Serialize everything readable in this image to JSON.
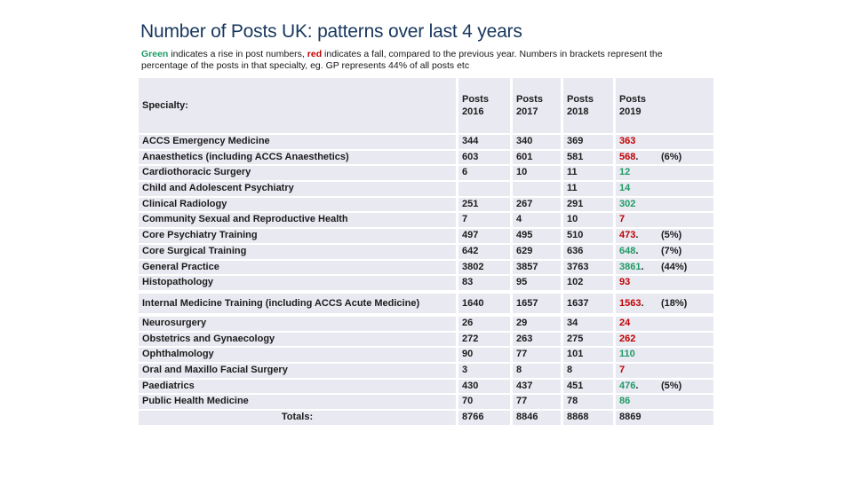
{
  "slide": {
    "title": "Number of Posts UK: patterns over last 4 years",
    "subtitle": {
      "green_word": "Green",
      "segment_after_green": " indicates a rise in post numbers, ",
      "red_word": "red",
      "segment_after_red": " indicates a fall, compared to the previous year. Numbers in brackets represent the percentage of the posts in that specialty, eg. GP represents 44% of all posts etc"
    }
  },
  "colors": {
    "title_navy": "#17375e",
    "rise_green": "#1e9b64",
    "fall_red": "#c00000",
    "row_background": "#e9e9f2",
    "table_text": "#1c1c1c"
  },
  "table": {
    "header": {
      "specialty_label": "Specialty:",
      "year_columns": [
        "Posts\n2016",
        "Posts\n2017",
        "Posts\n2018",
        "Posts\n2019"
      ]
    },
    "groups": [
      {
        "rows": [
          {
            "specialty": "ACCS Emergency Medicine",
            "v2016": "344",
            "v2017": "340",
            "v2018": "369",
            "v2019": "363",
            "trend": "fall",
            "dot": false,
            "pct": ""
          },
          {
            "specialty": "Anaesthetics (including ACCS Anaesthetics)",
            "v2016": "603",
            "v2017": "601",
            "v2018": "581",
            "v2019": "568",
            "trend": "fall",
            "dot": true,
            "pct": "(6%)"
          },
          {
            "specialty": "Cardiothoracic Surgery",
            "v2016": "6",
            "v2017": "10",
            "v2018": "11",
            "v2019": "12",
            "trend": "rise",
            "dot": false,
            "pct": ""
          },
          {
            "specialty": "Child and Adolescent Psychiatry",
            "v2016": "",
            "v2017": "",
            "v2018": "11",
            "v2019": "14",
            "trend": "rise",
            "dot": false,
            "pct": ""
          },
          {
            "specialty": "Clinical Radiology",
            "v2016": "251",
            "v2017": "267",
            "v2018": "291",
            "v2019": "302",
            "trend": "rise",
            "dot": false,
            "pct": ""
          },
          {
            "specialty": "Community Sexual and Reproductive Health",
            "v2016": "7",
            "v2017": "4",
            "v2018": "10",
            "v2019": "7",
            "trend": "fall",
            "dot": false,
            "pct": ""
          },
          {
            "specialty": "Core Psychiatry Training",
            "v2016": "497",
            "v2017": "495",
            "v2018": "510",
            "v2019": "473",
            "trend": "fall",
            "dot": true,
            "pct": "(5%)"
          },
          {
            "specialty": "Core Surgical Training",
            "v2016": "642",
            "v2017": "629",
            "v2018": "636",
            "v2019": "648",
            "trend": "rise",
            "dot": true,
            "pct": "(7%)"
          },
          {
            "specialty": "General Practice",
            "v2016": "3802",
            "v2017": "3857",
            "v2018": "3763",
            "v2019": "3861",
            "trend": "rise",
            "dot": true,
            "pct": "(44%)"
          },
          {
            "specialty": "Histopathology",
            "v2016": "83",
            "v2017": "95",
            "v2018": "102",
            "v2019": "93",
            "trend": "fall",
            "dot": false,
            "pct": ""
          }
        ]
      },
      {
        "rows": [
          {
            "specialty": "Internal Medicine Training (including ACCS Acute Medicine)",
            "v2016": "1640",
            "v2017": "1657",
            "v2018": "1637",
            "v2019": "1563",
            "trend": "fall",
            "dot": true,
            "pct": "(18%)"
          }
        ]
      },
      {
        "rows": [
          {
            "specialty": "Neurosurgery",
            "v2016": "26",
            "v2017": "29",
            "v2018": "34",
            "v2019": "24",
            "trend": "fall",
            "dot": false,
            "pct": ""
          },
          {
            "specialty": "Obstetrics and Gynaecology",
            "v2016": "272",
            "v2017": "263",
            "v2018": "275",
            "v2019": "262",
            "trend": "fall",
            "dot": false,
            "pct": ""
          },
          {
            "specialty": "Ophthalmology",
            "v2016": "90",
            "v2017": "77",
            "v2018": "101",
            "v2019": "110",
            "trend": "rise",
            "dot": false,
            "pct": ""
          },
          {
            "specialty": "Oral and Maxillo Facial Surgery",
            "v2016": "3",
            "v2017": "8",
            "v2018": "8",
            "v2019": "7",
            "trend": "fall",
            "dot": false,
            "pct": ""
          },
          {
            "specialty": "Paediatrics",
            "v2016": "430",
            "v2017": "437",
            "v2018": "451",
            "v2019": "476",
            "trend": "rise",
            "dot": true,
            "pct": "(5%)"
          },
          {
            "specialty": "Public Health Medicine",
            "v2016": "70",
            "v2017": "77",
            "v2018": "78",
            "v2019": "86",
            "trend": "rise",
            "dot": false,
            "pct": ""
          },
          {
            "specialty": "Totals:",
            "is_total": true,
            "v2016": "8766",
            "v2017": "8846",
            "v2018": "8868",
            "v2019": "8869",
            "trend": "none",
            "dot": false,
            "pct": ""
          }
        ]
      }
    ]
  }
}
